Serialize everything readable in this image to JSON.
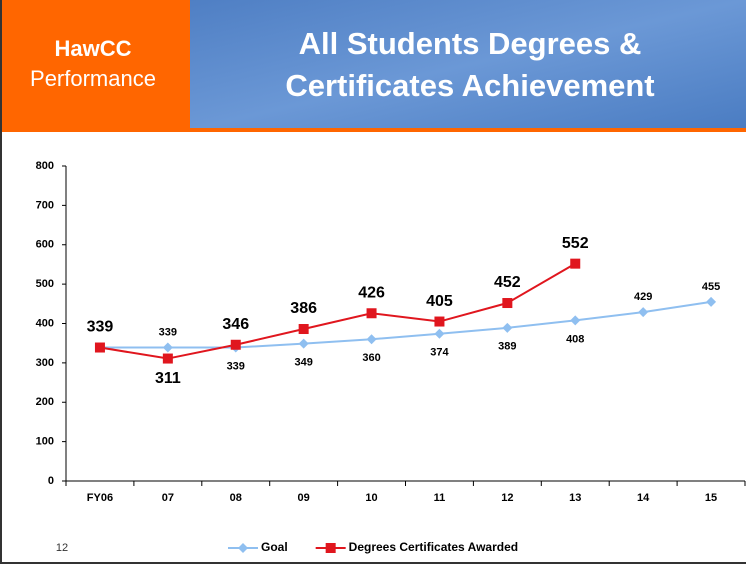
{
  "header": {
    "brand": "HawCC",
    "brand_sub": "Performance",
    "title_line1": "All Students Degrees &",
    "title_line2": "Certificates Achievement"
  },
  "page_number": "12",
  "chart_data": {
    "type": "line",
    "categories": [
      "FY06",
      "07",
      "08",
      "09",
      "10",
      "11",
      "12",
      "13",
      "14",
      "15"
    ],
    "series": [
      {
        "name": "Goal",
        "color": "#8fbff0",
        "marker": "diamond",
        "values": [
          339,
          339,
          339,
          349,
          360,
          374,
          389,
          408,
          429,
          455
        ]
      },
      {
        "name": "Degrees Certificates Awarded",
        "color": "#e0161e",
        "marker": "square",
        "values": [
          339,
          311,
          346,
          386,
          426,
          405,
          452,
          552,
          null,
          null
        ]
      }
    ],
    "ylim": [
      0,
      800
    ],
    "yticks": [
      0,
      100,
      200,
      300,
      400,
      500,
      600,
      700,
      800
    ],
    "grid": false,
    "legend": "bottom"
  }
}
